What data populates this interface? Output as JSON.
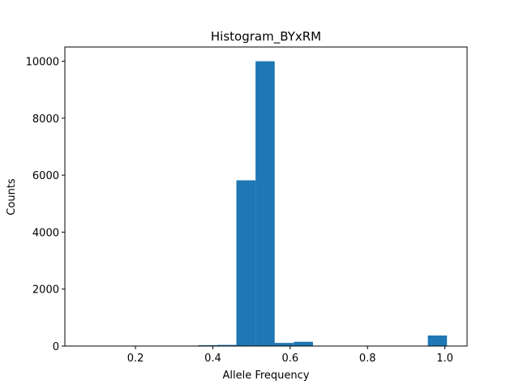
{
  "chart_data": {
    "type": "bar",
    "title": "Histogram_BYxRM",
    "xlabel": "Allele Frequency",
    "ylabel": "Counts",
    "xlim": [
      0.0175,
      1.0575
    ],
    "ylim": [
      0,
      10500
    ],
    "x_ticks": [
      0.2,
      0.4,
      0.6,
      0.8,
      1.0
    ],
    "x_tick_labels": [
      "0.2",
      "0.4",
      "0.6",
      "0.8",
      "1.0"
    ],
    "y_ticks": [
      0,
      2000,
      4000,
      6000,
      8000,
      10000
    ],
    "y_tick_labels": [
      "0",
      "2000",
      "4000",
      "6000",
      "8000",
      "10000"
    ],
    "bar_color": "#1f77b4",
    "bin_width": 0.0495,
    "bin_starts": [
      0.065,
      0.1145,
      0.164,
      0.2135,
      0.263,
      0.3125,
      0.362,
      0.4115,
      0.461,
      0.5105,
      0.56,
      0.6095,
      0.659,
      0.7085,
      0.758,
      0.8075,
      0.857,
      0.9065,
      0.956
    ],
    "counts": [
      0,
      0,
      0,
      0,
      0,
      0,
      30,
      40,
      5820,
      10000,
      110,
      150,
      0,
      0,
      0,
      0,
      0,
      0,
      370
    ]
  }
}
